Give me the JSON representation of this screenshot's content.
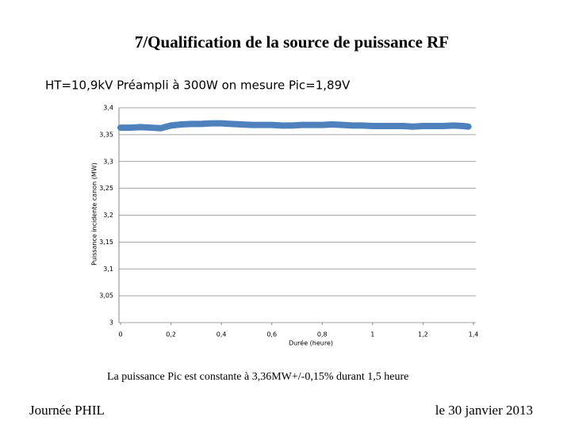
{
  "title": "7/Qualification de la source de puissance RF",
  "subtitle": "HT=10,9kV Préampli à 300W on mesure Pic=1,89V",
  "chart_data": {
    "type": "line",
    "xlabel": "Durée (heure)",
    "ylabel": "Puissance incidente canon (MW)",
    "x": [
      0,
      0.04,
      0.08,
      0.12,
      0.16,
      0.2,
      0.24,
      0.28,
      0.32,
      0.36,
      0.4,
      0.44,
      0.48,
      0.52,
      0.56,
      0.6,
      0.64,
      0.68,
      0.72,
      0.76,
      0.8,
      0.84,
      0.88,
      0.92,
      0.96,
      1.0,
      1.04,
      1.08,
      1.12,
      1.16,
      1.2,
      1.24,
      1.28,
      1.32,
      1.36,
      1.38
    ],
    "series": [
      {
        "color": "#4f81bd",
        "values": [
          3.363,
          3.363,
          3.364,
          3.363,
          3.362,
          3.367,
          3.369,
          3.37,
          3.37,
          3.371,
          3.371,
          3.37,
          3.369,
          3.368,
          3.368,
          3.368,
          3.367,
          3.367,
          3.368,
          3.368,
          3.368,
          3.369,
          3.368,
          3.367,
          3.367,
          3.366,
          3.366,
          3.366,
          3.366,
          3.365,
          3.366,
          3.366,
          3.366,
          3.367,
          3.366,
          3.365
        ]
      }
    ],
    "xlim": [
      0,
      1.4
    ],
    "xticks": [
      0,
      {
        "value": 0.2,
        "label": "0,2"
      },
      {
        "value": 0.4,
        "label": "0,4"
      },
      {
        "value": 0.6,
        "label": "0,6"
      },
      {
        "value": 0.8,
        "label": "0,8"
      },
      1,
      {
        "value": 1.2,
        "label": "1,2"
      },
      {
        "value": 1.4,
        "label": "1,4"
      }
    ],
    "ylim": [
      3,
      3.4
    ],
    "yticks": [
      3,
      {
        "value": 3.05,
        "label": "3,05"
      },
      {
        "value": 3.1,
        "label": "3,1"
      },
      {
        "value": 3.15,
        "label": "3,15"
      },
      {
        "value": 3.2,
        "label": "3,2"
      },
      {
        "value": 3.25,
        "label": "3,25"
      },
      {
        "value": 3.3,
        "label": "3,3"
      },
      {
        "value": 3.35,
        "label": "3,35"
      },
      {
        "value": 3.4,
        "label": "3,4"
      }
    ],
    "grid": true
  },
  "note": "La puissance Pic est constante à 3,36MW+/-0,15% durant 1,5 heure",
  "footer": {
    "left": "Journée PHIL",
    "right": "le 30 janvier 2013"
  }
}
